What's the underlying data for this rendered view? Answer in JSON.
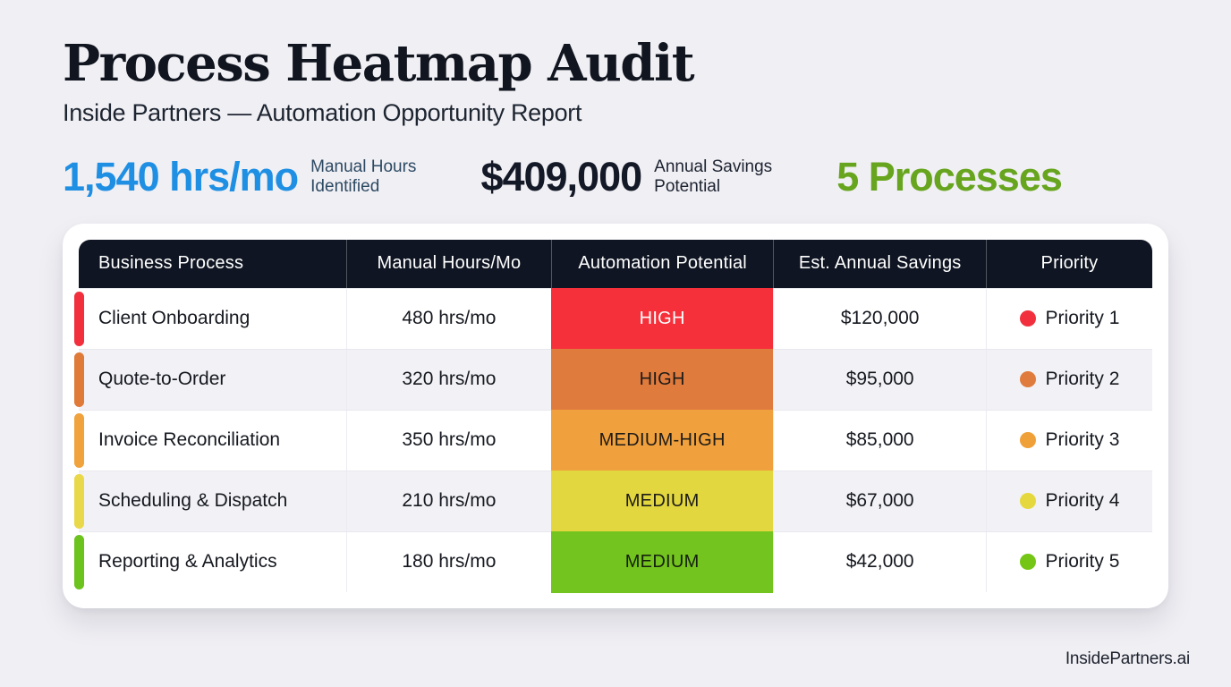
{
  "page": {
    "background": "#f0eff4",
    "footer_brand": "InsidePartners.ai"
  },
  "header": {
    "title": "Process Heatmap Audit",
    "subtitle": "Inside Partners — Automation Opportunity Report"
  },
  "stats": [
    {
      "value": "1,540 hrs/mo",
      "label_line1": "Manual Hours",
      "label_line2": "Identified",
      "color": "#1e8fe3",
      "label_color": "#2d4a63"
    },
    {
      "value": "$409,000",
      "label_line1": "Annual Savings",
      "label_line2": "Potential",
      "color": "#141927",
      "label_color": "#1c2330"
    },
    {
      "value": "5 Processes",
      "label_line1": "",
      "label_line2": "",
      "color": "#67a51e",
      "label_color": ""
    }
  ],
  "table": {
    "header_bg": "#0f1522",
    "columns": [
      "Business Process",
      "Manual Hours/Mo",
      "Automation Potential",
      "Est. Annual Savings",
      "Priority"
    ],
    "rows": [
      {
        "process": "Client Onboarding",
        "hours": "480 hrs/mo",
        "potential": "HIGH",
        "potential_bg": "#f5303a",
        "potential_text_color": "#ffffff",
        "savings": "$120,000",
        "priority": "Priority 1",
        "accent": "#f2303d",
        "dot": "#f2303d",
        "row_bg": "#ffffff"
      },
      {
        "process": "Quote-to-Order",
        "hours": "320 hrs/mo",
        "potential": "HIGH",
        "potential_bg": "#e07b3e",
        "potential_text_color": "#1d1b18",
        "savings": "$95,000",
        "priority": "Priority 2",
        "accent": "#df7a39",
        "dot": "#e07b3e",
        "row_bg": "#f2f2f6"
      },
      {
        "process": "Invoice Reconciliation",
        "hours": "350 hrs/mo",
        "potential": "MEDIUM-HIGH",
        "potential_bg": "#f0a03c",
        "potential_text_color": "#1d1b18",
        "savings": "$85,000",
        "priority": "Priority 3",
        "accent": "#f0a33c",
        "dot": "#f0a038",
        "row_bg": "#ffffff"
      },
      {
        "process": "Scheduling & Dispatch",
        "hours": "210 hrs/mo",
        "potential": "MEDIUM",
        "potential_bg": "#e2d73f",
        "potential_text_color": "#1d1b18",
        "savings": "$67,000",
        "priority": "Priority 4",
        "accent": "#e9d84a",
        "dot": "#e5d83e",
        "row_bg": "#f2f2f6"
      },
      {
        "process": "Reporting & Analytics",
        "hours": "180 hrs/mo",
        "potential": "MEDIUM",
        "potential_bg": "#74c41f",
        "potential_text_color": "#15200d",
        "savings": "$42,000",
        "priority": "Priority 5",
        "accent": "#6cc31e",
        "dot": "#74c516",
        "row_bg": "#ffffff"
      }
    ]
  },
  "chart_data": {
    "type": "table",
    "title": "Process Heatmap Audit",
    "subtitle": "Inside Partners — Automation Opportunity Report",
    "summary": {
      "manual_hours_identified": "1,540 hrs/mo",
      "annual_savings_potential": "$409,000",
      "process_count": "5 Processes"
    },
    "columns": [
      "Business Process",
      "Manual Hours/Mo",
      "Automation Potential",
      "Est. Annual Savings",
      "Priority"
    ],
    "rows": [
      [
        "Client Onboarding",
        "480 hrs/mo",
        "HIGH",
        "$120,000",
        "Priority 1"
      ],
      [
        "Quote-to-Order",
        "320 hrs/mo",
        "HIGH",
        "$95,000",
        "Priority 2"
      ],
      [
        "Invoice Reconciliation",
        "350 hrs/mo",
        "MEDIUM-HIGH",
        "$85,000",
        "Priority 3"
      ],
      [
        "Scheduling & Dispatch",
        "210 hrs/mo",
        "MEDIUM",
        "$67,000",
        "Priority 4"
      ],
      [
        "Reporting & Analytics",
        "180 hrs/mo",
        "MEDIUM",
        "$42,000",
        "Priority 5"
      ]
    ],
    "heat_scale": [
      "#f5303a",
      "#e07b3e",
      "#f0a03c",
      "#e2d73f",
      "#74c41f"
    ]
  }
}
